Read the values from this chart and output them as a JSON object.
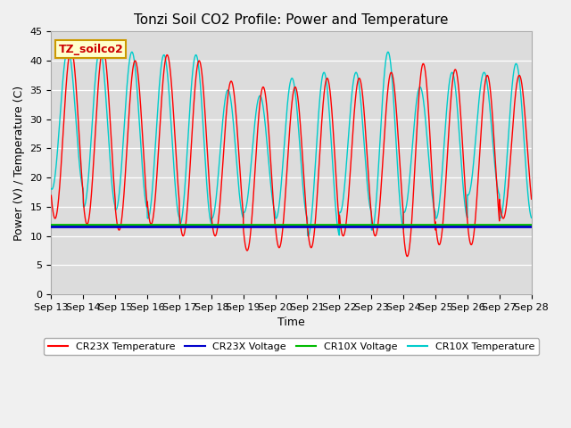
{
  "title": "Tonzi Soil CO2 Profile: Power and Temperature",
  "xlabel": "Time",
  "ylabel": "Power (V) / Temperature (C)",
  "ylim": [
    0,
    45
  ],
  "xlim": [
    0,
    15
  ],
  "x_tick_labels": [
    "Sep 13",
    "Sep 14",
    "Sep 15",
    "Sep 16",
    "Sep 17",
    "Sep 18",
    "Sep 19",
    "Sep 20",
    "Sep 21",
    "Sep 22",
    "Sep 23",
    "Sep 24",
    "Sep 25",
    "Sep 26",
    "Sep 27",
    "Sep 28"
  ],
  "cr23x_voltage": 11.6,
  "cr10x_voltage": 12.0,
  "plot_bg_color": "#dcdcdc",
  "fig_bg_color": "#f0f0f0",
  "legend_label": "TZ_soilco2",
  "legend_entries": [
    "CR23X Temperature",
    "CR23X Voltage",
    "CR10X Voltage",
    "CR10X Temperature"
  ],
  "legend_colors": [
    "#ff0000",
    "#0000cc",
    "#00aa00",
    "#00cccc"
  ],
  "cr23x_peak": [
    42,
    42,
    40,
    41,
    40,
    36.5,
    35.5,
    35.5,
    37,
    37,
    38,
    39.5,
    38.5,
    37.5,
    37.5
  ],
  "cr23x_min": [
    13,
    12,
    11,
    12,
    10,
    10,
    7.5,
    8,
    8,
    10,
    10,
    6.5,
    8.5,
    8.5,
    13
  ],
  "cr10x_peak": [
    42,
    42,
    41.5,
    41,
    41,
    35,
    34,
    37,
    38,
    38,
    41.5,
    35.5,
    38,
    38,
    39.5
  ],
  "cr10x_min": [
    18,
    15,
    14.5,
    13,
    12,
    13,
    14,
    13,
    10,
    14,
    11,
    14,
    13,
    17,
    13
  ],
  "cr23x_phase_shift": 0.12,
  "cr10x_phase_shift": 0.02,
  "title_fontsize": 11,
  "axis_fontsize": 9,
  "tick_fontsize": 8
}
